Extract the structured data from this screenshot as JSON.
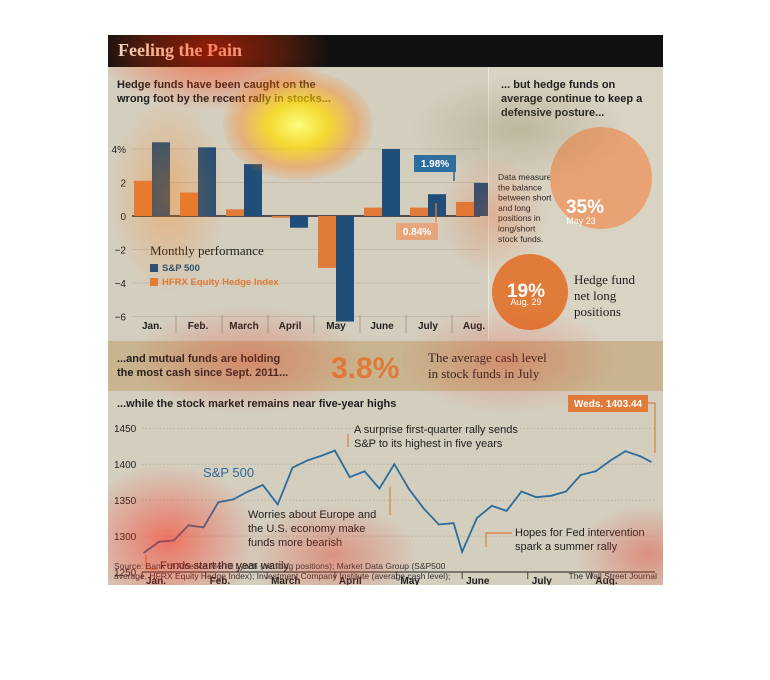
{
  "title": "Feeling the Pain",
  "colors": {
    "navy": "#1f4e79",
    "orange": "#e07b39",
    "header": "#111111",
    "panel": "#d9d3c4",
    "line": "#2c6c9c"
  },
  "section1": {
    "heading_line1": "Hedge funds have been caught on the",
    "heading_line2": "wrong foot by the recent rally in stocks...",
    "legend_title": "Monthly performance",
    "legend_sp": "S&P 500",
    "legend_hfrx": "HFRX Equity Hedge Index",
    "callout_sp": "1.98%",
    "callout_hfrx": "0.84%"
  },
  "section2": {
    "heading_line1": "... but hedge funds on",
    "heading_line2": "average continue to keep a",
    "heading_line3": "defensive posture...",
    "note_lines": [
      "Data measure",
      "the balance",
      "between short",
      "and long",
      "positions in",
      "long/short",
      "stock funds."
    ],
    "big_pct": "35%",
    "big_date": "May 23",
    "small_pct": "19%",
    "small_date": "Aug. 29",
    "label_lines": [
      "Hedge fund",
      "net long",
      "positions"
    ]
  },
  "section3": {
    "heading_line1": "...and mutual funds are holding",
    "heading_line2": "the most cash since Sept. 2011...",
    "value": "3.8%",
    "desc_line1": "The average cash level",
    "desc_line2": "in stock funds in July"
  },
  "section4": {
    "heading": "...while the stock market remains near five-year highs",
    "series_label": "S&P 500",
    "callout": "Weds. 1403.44",
    "ann1_line1": "A surprise first-quarter rally sends",
    "ann1_line2": "S&P to its highest in five years",
    "ann2_line1": "Worries about Europe and",
    "ann2_line2": "the U.S. economy make",
    "ann2_line3": "funds more bearish",
    "ann3_line1": "Hopes for Fed intervention",
    "ann3_line2": "spark a summer rally",
    "ann4": "Funds start the year warily"
  },
  "footer": {
    "source_line1": "Source: Bank of America Merrill Lynch (net long positions); Market Data Group (S&P500",
    "source_line2": "average, HFRX Equity Hedge Index); Investment Company Institute (average cash level);",
    "credit": "The Wall Street Journal"
  },
  "chart_data": [
    {
      "type": "bar",
      "categories": [
        "Jan.",
        "Feb.",
        "March",
        "April",
        "May",
        "June",
        "July",
        "Aug."
      ],
      "series": [
        {
          "name": "S&P 500",
          "values": [
            4.4,
            4.1,
            3.1,
            -0.7,
            -6.3,
            4.0,
            1.3,
            1.98
          ]
        },
        {
          "name": "HFRX Equity Hedge Index",
          "values": [
            2.1,
            1.4,
            0.4,
            -0.1,
            -3.1,
            0.5,
            0.5,
            0.84
          ]
        }
      ],
      "yticks": [
        "4%",
        "2",
        "0",
        "−2",
        "−4",
        "−6"
      ],
      "ylim": [
        -6.5,
        4.5
      ],
      "title": "",
      "xlabel": "",
      "ylabel": ""
    },
    {
      "type": "line",
      "series": [
        {
          "name": "S&P 500",
          "x": [
            "2012-01-03",
            "2012-01-10",
            "2012-01-17",
            "2012-01-24",
            "2012-01-31",
            "2012-02-07",
            "2012-02-14",
            "2012-02-21",
            "2012-02-28",
            "2012-03-06",
            "2012-03-13",
            "2012-03-20",
            "2012-03-27",
            "2012-04-02",
            "2012-04-09",
            "2012-04-16",
            "2012-04-23",
            "2012-04-30",
            "2012-05-07",
            "2012-05-14",
            "2012-05-21",
            "2012-05-28",
            "2012-06-01",
            "2012-06-08",
            "2012-06-15",
            "2012-06-22",
            "2012-06-29",
            "2012-07-06",
            "2012-07-13",
            "2012-07-20",
            "2012-07-27",
            "2012-08-03",
            "2012-08-10",
            "2012-08-17",
            "2012-08-24",
            "2012-08-29"
          ],
          "values": [
            1277,
            1292,
            1294,
            1315,
            1312,
            1347,
            1351,
            1362,
            1371,
            1344,
            1395,
            1405,
            1412,
            1419,
            1382,
            1390,
            1366,
            1400,
            1365,
            1338,
            1316,
            1318,
            1278,
            1325,
            1342,
            1335,
            1362,
            1354,
            1356,
            1362,
            1385,
            1390,
            1405,
            1418,
            1411,
            1403.44
          ]
        }
      ],
      "xticks": [
        "Jan.",
        "Feb.",
        "March",
        "April",
        "May",
        "June",
        "July",
        "Aug."
      ],
      "yticks": [
        1450,
        1400,
        1350,
        1300,
        1250
      ],
      "ylim": [
        1250,
        1460
      ],
      "title": "",
      "xlabel": "",
      "ylabel": ""
    }
  ]
}
